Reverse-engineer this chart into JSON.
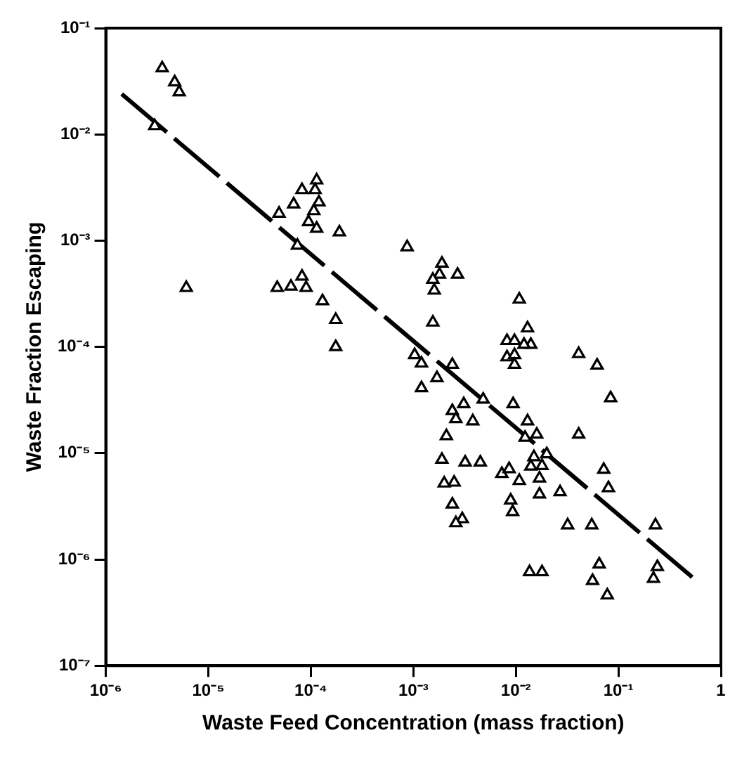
{
  "chart_data": {
    "type": "scatter",
    "xlabel": "Waste Feed Concentration (mass fraction)",
    "ylabel": "Waste Fraction Escaping",
    "log": "xy",
    "grid": false,
    "xlim": [
      1e-06,
      1
    ],
    "ylim": [
      1e-07,
      0.1
    ],
    "xticks": [
      {
        "value": 1e-06,
        "label": "10⁻⁶"
      },
      {
        "value": 1e-05,
        "label": "10⁻⁵"
      },
      {
        "value": 0.0001,
        "label": "10⁻⁴"
      },
      {
        "value": 0.001,
        "label": "10⁻³"
      },
      {
        "value": 0.01,
        "label": "10⁻²"
      },
      {
        "value": 0.1,
        "label": "10⁻¹"
      },
      1
    ],
    "yticks": [
      {
        "value": 1e-07,
        "label": "10⁻⁷"
      },
      {
        "value": 1e-06,
        "label": "10⁻⁶"
      },
      {
        "value": 1e-05,
        "label": "10⁻⁵"
      },
      {
        "value": 0.0001,
        "label": "10⁻⁴"
      },
      {
        "value": 0.001,
        "label": "10⁻³"
      },
      {
        "value": 0.01,
        "label": "10⁻²"
      },
      {
        "value": 0.1,
        "label": "10⁻¹"
      }
    ],
    "series": [
      {
        "marker": "triangle",
        "color": "#000000",
        "x": [
          3.55e-06,
          4.7e-06,
          5.2e-06,
          3e-06,
          6.1e-06,
          0.000114,
          8.2e-05,
          0.00011,
          6.8e-05,
          0.00012,
          0.000107,
          4.9e-05,
          9.5e-05,
          0.000114,
          0.00019,
          7.4e-05,
          0.00087,
          8.2e-05,
          4.7e-05,
          6.4e-05,
          9e-05,
          0.00013,
          0.000175,
          0.000175,
          0.0019,
          0.0027,
          0.0018,
          0.00155,
          0.0016,
          0.0108,
          0.00155,
          0.013,
          0.0082,
          0.0097,
          0.014,
          0.012,
          0.0082,
          0.0097,
          0.0097,
          0.041,
          0.062,
          0.00103,
          0.0012,
          0.0024,
          0.0017,
          0.0012,
          0.084,
          0.0048,
          0.0031,
          0.0094,
          0.0024,
          0.0026,
          0.0038,
          0.013,
          0.016,
          0.0123,
          0.041,
          0.0021,
          0.02,
          0.015,
          0.0019,
          0.0032,
          0.0045,
          0.018,
          0.072,
          0.0073,
          0.0086,
          0.014,
          0.0108,
          0.017,
          0.002,
          0.0025,
          0.08,
          0.027,
          0.017,
          0.0089,
          0.0024,
          0.0093,
          0.003,
          0.0026,
          0.032,
          0.055,
          0.23,
          0.065,
          0.0136,
          0.018,
          0.24,
          0.22,
          0.056,
          0.078
        ],
        "values": [
          0.042,
          0.031,
          0.025,
          0.012,
          0.00036,
          0.0037,
          0.003,
          0.003,
          0.0022,
          0.0023,
          0.0019,
          0.0018,
          0.0015,
          0.0013,
          0.0012,
          0.0009,
          0.00087,
          0.00046,
          0.00036,
          0.00037,
          0.00036,
          0.00027,
          0.00018,
          0.0001,
          0.00061,
          0.00048,
          0.00048,
          0.00043,
          0.00034,
          0.00028,
          0.00017,
          0.00015,
          0.000114,
          0.000114,
          0.000105,
          0.000105,
          8e-05,
          8.4e-05,
          6.8e-05,
          8.6e-05,
          6.7e-05,
          8.4e-05,
          7e-05,
          6.8e-05,
          5.1e-05,
          4.1e-05,
          3.3e-05,
          3.2e-05,
          2.9e-05,
          2.9e-05,
          2.5e-05,
          2.1e-05,
          2e-05,
          2e-05,
          1.5e-05,
          1.4e-05,
          1.5e-05,
          1.45e-05,
          9.8e-06,
          9.2e-06,
          8.7e-06,
          8.2e-06,
          8.2e-06,
          7.6e-06,
          7e-06,
          6.4e-06,
          7.1e-06,
          7.5e-06,
          5.5e-06,
          5.8e-06,
          5.2e-06,
          5.3e-06,
          4.7e-06,
          4.3e-06,
          4.1e-06,
          3.6e-06,
          3.3e-06,
          2.8e-06,
          2.4e-06,
          2.2e-06,
          2.1e-06,
          2.1e-06,
          2.1e-06,
          9e-07,
          7.6e-07,
          7.6e-07,
          8.5e-07,
          6.6e-07,
          6.3e-07,
          4.6e-07
        ]
      },
      {
        "type": "line",
        "color": "#000000",
        "line_style": "dashed",
        "x": [
          1.43e-06,
          0.577
        ],
        "values": [
          0.024,
          6.3e-07
        ]
      }
    ]
  }
}
